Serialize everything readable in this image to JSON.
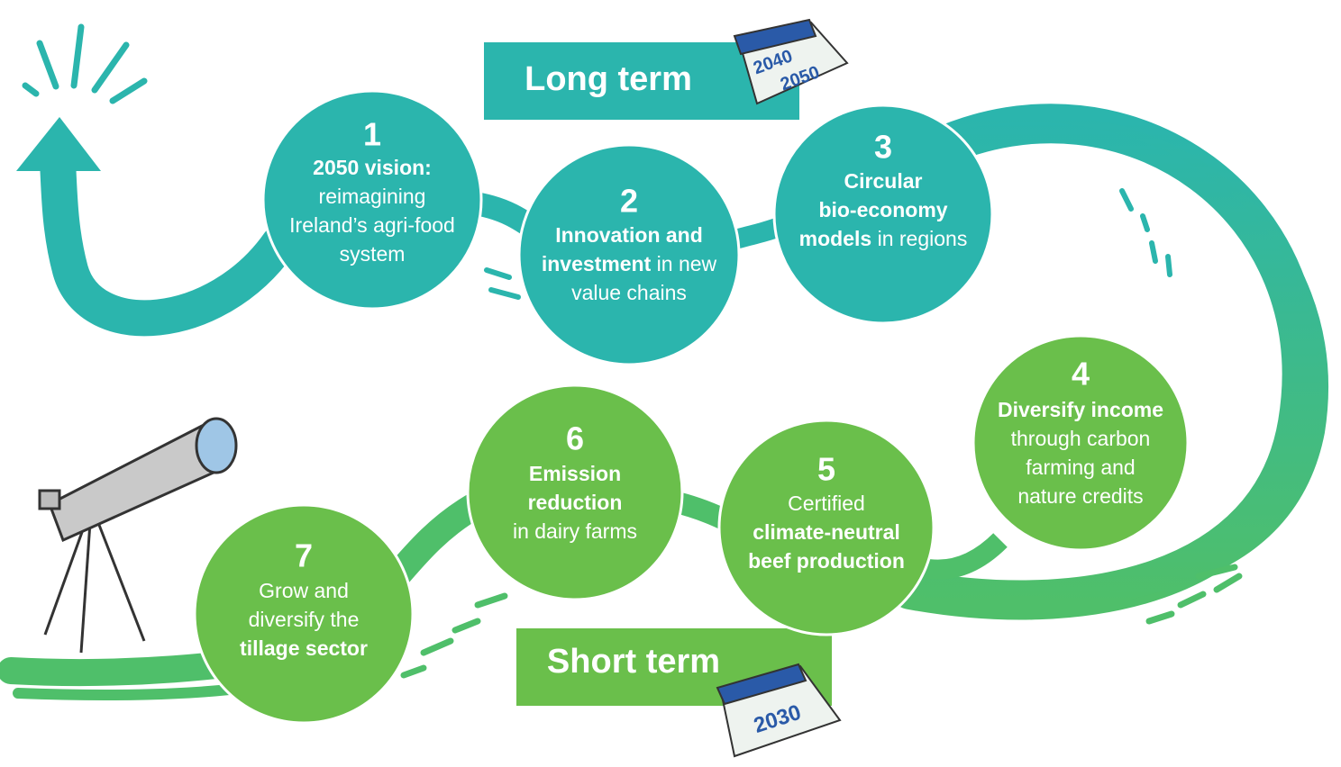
{
  "banners": {
    "long_term": "Long term",
    "short_term": "Short term"
  },
  "calendars": {
    "long": [
      "2040",
      "2050"
    ],
    "short": [
      "2030"
    ]
  },
  "nodes": [
    {
      "number": "1",
      "lines": [
        [
          {
            "text": "2050 vision:",
            "bold": true
          }
        ],
        [
          {
            "text": "reimagining",
            "bold": false
          }
        ],
        [
          {
            "text": "Ireland’s agri-food",
            "bold": false
          }
        ],
        [
          {
            "text": "system",
            "bold": false
          }
        ]
      ]
    },
    {
      "number": "2",
      "lines": [
        [
          {
            "text": "Innovation and",
            "bold": true
          }
        ],
        [
          {
            "text": "investment",
            "bold": true
          },
          {
            "text": " in new",
            "bold": false
          }
        ],
        [
          {
            "text": "value chains",
            "bold": false
          }
        ]
      ]
    },
    {
      "number": "3",
      "lines": [
        [
          {
            "text": "Circular",
            "bold": true
          }
        ],
        [
          {
            "text": "bio-economy",
            "bold": true
          }
        ],
        [
          {
            "text": "models",
            "bold": true
          },
          {
            "text": " in regions",
            "bold": false
          }
        ]
      ]
    },
    {
      "number": "4",
      "lines": [
        [
          {
            "text": "Diversify income",
            "bold": true
          }
        ],
        [
          {
            "text": "through carbon",
            "bold": false
          }
        ],
        [
          {
            "text": "farming and",
            "bold": false
          }
        ],
        [
          {
            "text": "nature credits",
            "bold": false
          }
        ]
      ]
    },
    {
      "number": "5",
      "lines": [
        [
          {
            "text": "Certified",
            "bold": false
          }
        ],
        [
          {
            "text": "climate-neutral",
            "bold": true
          }
        ],
        [
          {
            "text": "beef production",
            "bold": true
          }
        ]
      ]
    },
    {
      "number": "6",
      "lines": [
        [
          {
            "text": "Emission",
            "bold": true
          }
        ],
        [
          {
            "text": "reduction",
            "bold": true
          }
        ],
        [
          {
            "text": "in dairy farms",
            "bold": false
          }
        ]
      ]
    },
    {
      "number": "7",
      "lines": [
        [
          {
            "text": "Grow and",
            "bold": false
          }
        ],
        [
          {
            "text": "diversify the",
            "bold": false
          }
        ],
        [
          {
            "text": "tillage sector",
            "bold": true
          }
        ]
      ]
    }
  ]
}
